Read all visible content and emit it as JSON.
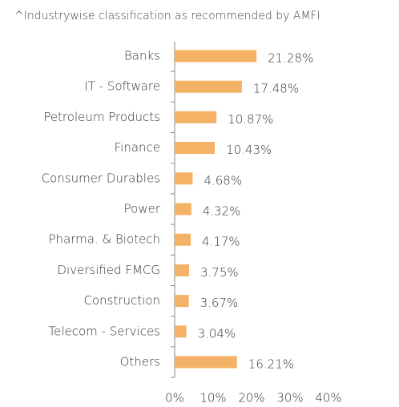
{
  "chart_data": {
    "type": "barh",
    "title": "^Industrywise classification as recommended by AMFI",
    "categories": [
      "Banks",
      "IT - Software",
      "Petroleum Products",
      "Finance",
      "Consumer Durables",
      "Power",
      "Pharma. & Biotech",
      "Diversified FMCG",
      "Construction",
      "Telecom - Services",
      "Others"
    ],
    "values": [
      21.28,
      17.48,
      10.87,
      10.43,
      4.68,
      4.32,
      4.17,
      3.75,
      3.67,
      3.04,
      16.21
    ],
    "value_labels": [
      "21.28%",
      "17.48%",
      "10.87%",
      "10.43%",
      "4.68%",
      "4.32%",
      "4.17%",
      "3.75%",
      "3.67%",
      "3.04%",
      "16.21%"
    ],
    "color": "#f4b266",
    "xlim": [
      0,
      40
    ],
    "xticks": [
      {
        "value": 0,
        "label": "0%"
      },
      {
        "value": 10,
        "label": "10%"
      },
      {
        "value": 20,
        "label": "20%"
      },
      {
        "value": 30,
        "label": "30%"
      },
      {
        "value": 40,
        "label": "40%"
      }
    ],
    "grid": false
  }
}
